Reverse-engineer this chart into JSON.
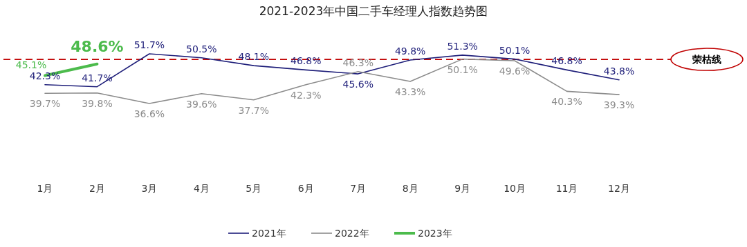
{
  "chart_data": {
    "type": "line",
    "title": "2021-2023年中国二手车经理人指数趋势图",
    "categories": [
      "1月",
      "2月",
      "3月",
      "4月",
      "5月",
      "6月",
      "7月",
      "8月",
      "9月",
      "10月",
      "11月",
      "12月"
    ],
    "series": [
      {
        "name": "2021年",
        "color": "#1f1f7a",
        "values": [
          42.3,
          41.7,
          51.7,
          50.5,
          48.1,
          46.8,
          45.6,
          49.8,
          51.3,
          50.1,
          46.8,
          43.8
        ],
        "value_labels": [
          "42.3%",
          "41.7%",
          "51.7%",
          "50.5%",
          "48.1%",
          "46.8%",
          "45.6%",
          "49.8%",
          "51.3%",
          "50.1%",
          "46.8%",
          "43.8%"
        ]
      },
      {
        "name": "2022年",
        "color": "#8c8c8c",
        "values": [
          39.7,
          39.8,
          36.6,
          39.6,
          37.7,
          42.3,
          46.3,
          43.3,
          50.1,
          49.6,
          40.3,
          39.3
        ],
        "value_labels": [
          "39.7%",
          "39.8%",
          "36.6%",
          "39.6%",
          "37.7%",
          "42.3%",
          "46.3%",
          "43.3%",
          "50.1%",
          "49.6%",
          "40.3%",
          "39.3%"
        ]
      },
      {
        "name": "2023年",
        "color": "#4cbb4c",
        "values": [
          45.1,
          48.6,
          null,
          null,
          null,
          null,
          null,
          null,
          null,
          null,
          null,
          null
        ],
        "value_labels": [
          "45.1%",
          "48.6%",
          null,
          null,
          null,
          null,
          null,
          null,
          null,
          null,
          null,
          null
        ]
      }
    ],
    "ref_lines": [
      {
        "axis": "y",
        "value": 50,
        "label": "荣枯线",
        "color": "#c00000",
        "line_style": "dashed"
      }
    ],
    "legend": "bottom",
    "marker": "none",
    "line_style": "solid",
    "grid": false
  }
}
